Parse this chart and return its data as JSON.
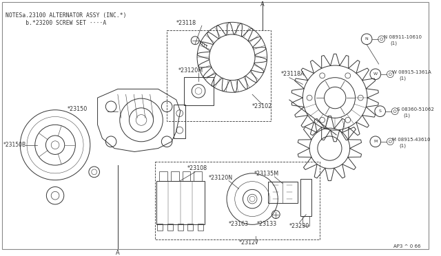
{
  "bg_color": "#ffffff",
  "line_color": "#333333",
  "notes_line1": "NOTESa.23100 ALTERNATOR ASSY (INC.*)",
  "notes_line2": "      b.*23200 SCREW SET ····A",
  "footer": "AP3 ^ 0 66",
  "label_fontsize": 5.8,
  "hw_fontsize": 5.5
}
